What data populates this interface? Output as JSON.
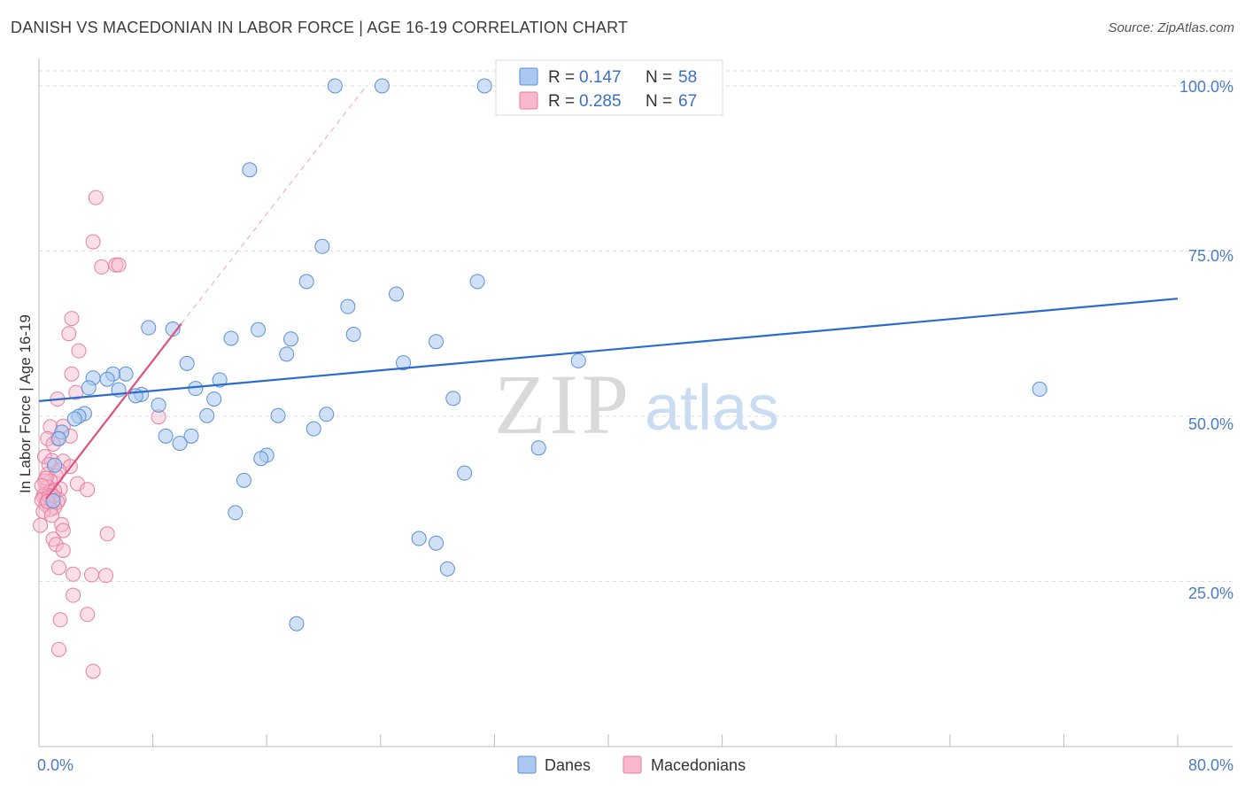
{
  "title": "DANISH VS MACEDONIAN IN LABOR FORCE | AGE 16-19 CORRELATION CHART",
  "source": "Source: ZipAtlas.com",
  "watermark": {
    "zip": "ZIP",
    "atlas": "atlas"
  },
  "colors": {
    "danes_fill": "#aac8f0",
    "danes_stroke": "#5b8fd6",
    "danes_line": "#2a6bcc",
    "mac_fill": "#f7b8cb",
    "mac_stroke": "#e87ea0",
    "mac_line": "#e0507e",
    "grid": "#dddddd",
    "tick_text": "#4a7cc7"
  },
  "legend": {
    "danes": {
      "r_label": "R =",
      "r_value": "0.147",
      "n_label": "N =",
      "n_value": "58"
    },
    "macedonians": {
      "r_label": "R =",
      "r_value": "0.285",
      "n_label": "N =",
      "n_value": "67"
    }
  },
  "chart_data": {
    "type": "scatter",
    "title": "DANISH VS MACEDONIAN IN LABOR FORCE | AGE 16-19 CORRELATION CHART",
    "xlabel": "",
    "ylabel": "In Labor Force | Age 16-19",
    "xlim": [
      0,
      80
    ],
    "ylim": [
      0,
      103
    ],
    "x_tick_labels": {
      "min": "0.0%",
      "max": "80.0%"
    },
    "y_ticks": [
      25,
      50,
      75,
      100
    ],
    "y_tick_labels": [
      "25.0%",
      "50.0%",
      "75.0%",
      "100.0%"
    ],
    "legend_position": "top-center",
    "series": [
      {
        "name": "Danes",
        "points": [
          [
            20.8,
            100
          ],
          [
            24.1,
            100
          ],
          [
            31.3,
            100
          ],
          [
            14.8,
            87.3
          ],
          [
            19.9,
            75.7
          ],
          [
            18.8,
            70.4
          ],
          [
            30.8,
            70.4
          ],
          [
            25.1,
            68.5
          ],
          [
            21.7,
            66.6
          ],
          [
            22.1,
            62.4
          ],
          [
            7.7,
            63.4
          ],
          [
            9.4,
            63.2
          ],
          [
            15.4,
            63.1
          ],
          [
            13.5,
            61.8
          ],
          [
            17.7,
            61.7
          ],
          [
            27.9,
            61.3
          ],
          [
            17.4,
            59.4
          ],
          [
            25.6,
            58.1
          ],
          [
            37.9,
            58.4
          ],
          [
            10.4,
            58.0
          ],
          [
            6.1,
            56.4
          ],
          [
            5.2,
            56.4
          ],
          [
            4.8,
            55.6
          ],
          [
            3.8,
            55.8
          ],
          [
            12.7,
            55.5
          ],
          [
            11.0,
            54.2
          ],
          [
            5.6,
            54.0
          ],
          [
            3.5,
            54.3
          ],
          [
            7.2,
            53.3
          ],
          [
            6.8,
            53.1
          ],
          [
            12.3,
            52.6
          ],
          [
            29.1,
            52.7
          ],
          [
            8.4,
            51.7
          ],
          [
            11.8,
            50.1
          ],
          [
            20.2,
            50.3
          ],
          [
            3.2,
            50.4
          ],
          [
            2.8,
            50.0
          ],
          [
            16.8,
            50.1
          ],
          [
            2.5,
            49.6
          ],
          [
            19.3,
            48.1
          ],
          [
            1.6,
            47.6
          ],
          [
            1.4,
            46.6
          ],
          [
            35.1,
            45.2
          ],
          [
            8.9,
            47.0
          ],
          [
            10.7,
            47.0
          ],
          [
            9.9,
            45.9
          ],
          [
            16.0,
            44.1
          ],
          [
            15.6,
            43.6
          ],
          [
            1.1,
            42.6
          ],
          [
            29.9,
            41.4
          ],
          [
            14.4,
            40.3
          ],
          [
            13.8,
            35.4
          ],
          [
            26.7,
            31.5
          ],
          [
            27.9,
            30.8
          ],
          [
            28.7,
            26.9
          ],
          [
            18.1,
            18.6
          ],
          [
            70.3,
            54.1
          ],
          [
            1.0,
            37.2
          ]
        ],
        "trend": {
          "x": [
            0,
            80
          ],
          "y": [
            52.3,
            67.8
          ]
        }
      },
      {
        "name": "Macedonians",
        "points": [
          [
            4.0,
            83.1
          ],
          [
            3.8,
            76.4
          ],
          [
            5.4,
            72.9
          ],
          [
            5.6,
            72.9
          ],
          [
            4.4,
            72.6
          ],
          [
            2.3,
            64.8
          ],
          [
            2.1,
            62.5
          ],
          [
            2.8,
            59.9
          ],
          [
            2.3,
            56.4
          ],
          [
            2.6,
            53.6
          ],
          [
            1.3,
            52.6
          ],
          [
            8.4,
            49.9
          ],
          [
            0.8,
            48.4
          ],
          [
            1.7,
            48.5
          ],
          [
            2.2,
            47.0
          ],
          [
            1.3,
            46.6
          ],
          [
            0.6,
            46.6
          ],
          [
            1.0,
            45.8
          ],
          [
            0.4,
            43.9
          ],
          [
            0.9,
            43.3
          ],
          [
            1.7,
            43.2
          ],
          [
            0.7,
            42.7
          ],
          [
            2.2,
            42.4
          ],
          [
            1.4,
            41.8
          ],
          [
            0.6,
            41.2
          ],
          [
            1.2,
            41.0
          ],
          [
            0.8,
            40.2
          ],
          [
            0.4,
            40.2
          ],
          [
            2.7,
            39.8
          ],
          [
            0.6,
            39.3
          ],
          [
            1.5,
            39.0
          ],
          [
            1.1,
            38.7
          ],
          [
            0.4,
            38.2
          ],
          [
            0.8,
            38.5
          ],
          [
            3.4,
            38.9
          ],
          [
            0.3,
            37.9
          ],
          [
            0.9,
            37.6
          ],
          [
            1.4,
            37.4
          ],
          [
            0.2,
            37.3
          ],
          [
            0.6,
            37.2
          ],
          [
            1.3,
            37.0
          ],
          [
            0.5,
            36.6
          ],
          [
            1.1,
            36.2
          ],
          [
            0.8,
            35.9
          ],
          [
            0.3,
            35.6
          ],
          [
            0.9,
            35.0
          ],
          [
            1.6,
            33.6
          ],
          [
            0.1,
            33.5
          ],
          [
            1.7,
            32.7
          ],
          [
            4.8,
            32.2
          ],
          [
            1.0,
            31.4
          ],
          [
            1.2,
            30.6
          ],
          [
            1.7,
            29.7
          ],
          [
            1.4,
            27.1
          ],
          [
            2.4,
            26.1
          ],
          [
            3.7,
            26.0
          ],
          [
            4.7,
            25.9
          ],
          [
            2.4,
            22.9
          ],
          [
            1.5,
            19.2
          ],
          [
            3.4,
            20.0
          ],
          [
            1.4,
            14.7
          ],
          [
            3.8,
            11.4
          ],
          [
            0.5,
            40.6
          ],
          [
            0.7,
            38.0
          ],
          [
            1.0,
            37.9
          ],
          [
            0.2,
            39.5
          ],
          [
            0.6,
            37.1
          ]
        ],
        "trend": {
          "x": [
            0.5,
            10.0
          ],
          "y": [
            37.5,
            64.0
          ]
        },
        "trend_ext": {
          "x": [
            10.0,
            23.0
          ],
          "y": [
            64.0,
            100.0
          ]
        }
      }
    ]
  },
  "bottom_legend": {
    "danes": "Danes",
    "macedonians": "Macedonians"
  }
}
